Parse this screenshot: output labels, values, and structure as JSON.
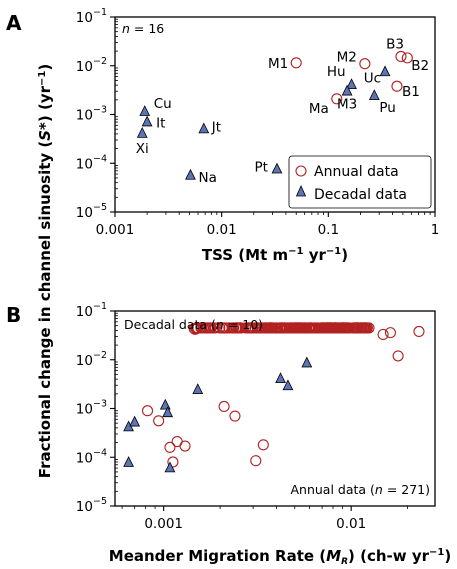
{
  "figure": {
    "ylabel": "Fractional change in channel sinuosity (S*) (yr⁻¹)",
    "ylabel_parts": {
      "pre": "Fractional change in channel sinuosity (",
      "italic": "S",
      "post1": "*) (yr",
      "sup": "−1",
      "post2": ")"
    }
  },
  "chart_data": [
    {
      "panel": "A",
      "type": "scatter",
      "xscale": "log",
      "yscale": "log",
      "xlim": [
        0.001,
        1
      ],
      "ylim": [
        1e-05,
        0.1
      ],
      "xlabel": "TSS (Mt m⁻¹ yr⁻¹)",
      "xlabel_parts": {
        "pre": "TSS (Mt m",
        "sup1": "−1",
        "mid": " yr",
        "sup2": "−1",
        "post": ")"
      },
      "xticks": [
        {
          "v": 0.001,
          "label": "0.001"
        },
        {
          "v": 0.01,
          "label": "0.01"
        },
        {
          "v": 0.1,
          "label": "0.1"
        },
        {
          "v": 1,
          "label": "1"
        }
      ],
      "yticks": [
        {
          "v": 1e-05,
          "base": "10",
          "exp": "−5"
        },
        {
          "v": 0.0001,
          "base": "10",
          "exp": "−4"
        },
        {
          "v": 0.001,
          "base": "10",
          "exp": "−3"
        },
        {
          "v": 0.01,
          "base": "10",
          "exp": "−2"
        },
        {
          "v": 0.1,
          "base": "10",
          "exp": "−1"
        }
      ],
      "annotation": {
        "var": "n",
        "text": " = 16",
        "position": "top-left"
      },
      "legend": {
        "position": "bottom-right",
        "entries": [
          {
            "label": "Annual data",
            "marker": "circle",
            "color": "#b22222"
          },
          {
            "label": "Decadal data",
            "marker": "triangle",
            "color": "#5b73b7"
          }
        ]
      },
      "series": [
        {
          "name": "Annual data",
          "points": [
            {
              "label": "M1",
              "x": 0.05,
              "y": 0.0115
            },
            {
              "label": "M2",
              "x": 0.22,
              "y": 0.011
            },
            {
              "label": "B3",
              "x": 0.48,
              "y": 0.0155
            },
            {
              "label": "B2",
              "x": 0.55,
              "y": 0.0145
            },
            {
              "label": "Ma",
              "x": 0.12,
              "y": 0.0021
            },
            {
              "label": "B1",
              "x": 0.44,
              "y": 0.0038
            }
          ]
        },
        {
          "name": "Decadal data",
          "points": [
            {
              "label": "Cu",
              "x": 0.0019,
              "y": 0.00118
            },
            {
              "label": "It",
              "x": 0.002,
              "y": 0.00072
            },
            {
              "label": "Xi",
              "x": 0.0018,
              "y": 0.00042
            },
            {
              "label": "Jt",
              "x": 0.0068,
              "y": 0.00052
            },
            {
              "label": "Na",
              "x": 0.0051,
              "y": 5.8e-05
            },
            {
              "label": "Pt",
              "x": 0.033,
              "y": 7.8e-05
            },
            {
              "label": "Hu",
              "x": 0.165,
              "y": 0.0042
            },
            {
              "label": "M3",
              "x": 0.15,
              "y": 0.0031
            },
            {
              "label": "Uc",
              "x": 0.34,
              "y": 0.0077
            },
            {
              "label": "Pu",
              "x": 0.27,
              "y": 0.0025
            }
          ]
        }
      ]
    },
    {
      "panel": "B",
      "type": "scatter",
      "xscale": "log",
      "yscale": "log",
      "xlim": [
        0.00055,
        0.028
      ],
      "ylim": [
        1e-05,
        0.1
      ],
      "xlabel": "Meander Migration Rate (M_R) (ch-w yr⁻¹)",
      "xlabel_parts": {
        "pre": "Meander Migration Rate (",
        "italic": "M",
        "sub": "R",
        "post1": ") (ch-w yr",
        "sup": "−1",
        "post2": ")"
      },
      "xticks": [
        {
          "v": 0.001,
          "label": "0.001"
        },
        {
          "v": 0.01,
          "label": "0.01"
        }
      ],
      "yticks": [
        {
          "v": 1e-05,
          "base": "10",
          "exp": "−5"
        },
        {
          "v": 0.0001,
          "base": "10",
          "exp": "−4"
        },
        {
          "v": 0.001,
          "base": "10",
          "exp": "−3"
        },
        {
          "v": 0.01,
          "base": "10",
          "exp": "−2"
        },
        {
          "v": 0.1,
          "base": "10",
          "exp": "−1"
        }
      ],
      "annotations": [
        {
          "pre": "Decadal data (",
          "var": "n",
          "post": " = 10)",
          "position": "top-left"
        },
        {
          "pre": "Annual data (",
          "var": "n",
          "post": " = 271)",
          "position": "bottom-right"
        }
      ],
      "series": [
        {
          "name": "Decadal data",
          "points": [
            {
              "x": 0.00065,
              "y": 0.00043
            },
            {
              "x": 0.0007,
              "y": 0.00054
            },
            {
              "x": 0.00065,
              "y": 8e-05
            },
            {
              "x": 0.00102,
              "y": 0.0012
            },
            {
              "x": 0.00105,
              "y": 0.00084
            },
            {
              "x": 0.00108,
              "y": 6.2e-05
            },
            {
              "x": 0.00152,
              "y": 0.0025
            },
            {
              "x": 0.0042,
              "y": 0.0042
            },
            {
              "x": 0.0046,
              "y": 0.003
            },
            {
              "x": 0.0058,
              "y": 0.0088
            }
          ]
        },
        {
          "name": "Annual data",
          "count": 271,
          "outliers": [
            {
              "x": 0.00082,
              "y": 0.0009
            },
            {
              "x": 0.00094,
              "y": 0.00056
            },
            {
              "x": 0.00108,
              "y": 0.00016
            },
            {
              "x": 0.00112,
              "y": 8e-05
            },
            {
              "x": 0.00118,
              "y": 0.00021
            },
            {
              "x": 0.0013,
              "y": 0.00017
            },
            {
              "x": 0.0031,
              "y": 8.5e-05
            },
            {
              "x": 0.0034,
              "y": 0.00018
            },
            {
              "x": 0.0024,
              "y": 0.0007
            },
            {
              "x": 0.0021,
              "y": 0.0011
            },
            {
              "x": 0.0148,
              "y": 0.033
            },
            {
              "x": 0.023,
              "y": 0.038
            },
            {
              "x": 0.0162,
              "y": 0.036
            },
            {
              "x": 0.0178,
              "y": 0.012
            }
          ],
          "trend": {
            "intercept_log10_y": 3.4,
            "slope": 1.6,
            "scatter_log10": 0.25
          }
        }
      ]
    }
  ]
}
